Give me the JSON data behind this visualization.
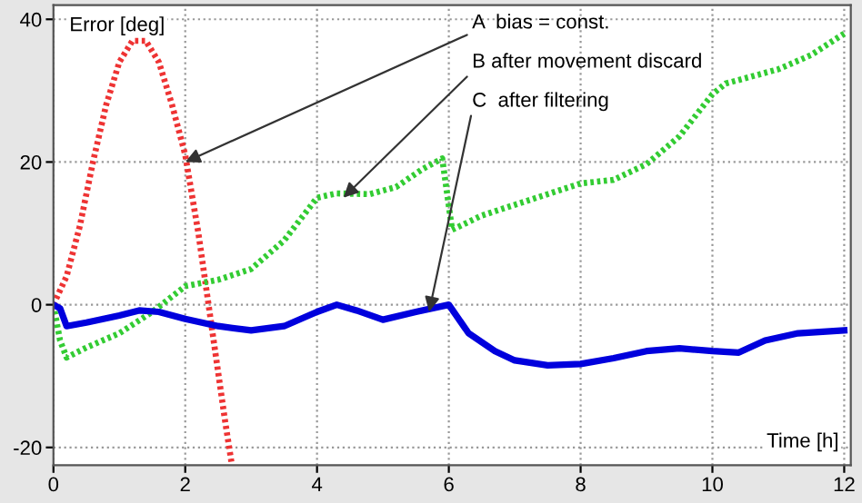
{
  "chart_data": {
    "type": "line",
    "xlabel": "Time [h]",
    "ylabel": "Error [deg]",
    "xlim": [
      0,
      12.1
    ],
    "ylim": [
      -22.5,
      42
    ],
    "xticks": [
      0,
      2,
      4,
      6,
      8,
      10,
      12
    ],
    "yticks": [
      -20,
      0,
      20,
      40
    ],
    "grid": true,
    "legend": false,
    "marker": "none",
    "series": [
      {
        "color": "#ee3333",
        "line_style": "dotted",
        "x": [
          0,
          0.2,
          0.4,
          0.6,
          0.8,
          1.0,
          1.2,
          1.4,
          1.6,
          1.8,
          2.0,
          2.2,
          2.4,
          2.6,
          2.7
        ],
        "values": [
          0,
          4,
          11,
          20,
          28,
          34,
          37,
          37,
          34,
          28,
          21,
          10,
          -3,
          -16,
          -22
        ]
      },
      {
        "color": "#33cc33",
        "line_style": "dotted",
        "x": [
          0,
          0.1,
          0.2,
          0.5,
          1,
          1.5,
          2,
          2.5,
          3,
          3.5,
          4,
          4.3,
          4.8,
          5.2,
          5.6,
          5.9,
          6.05,
          6.5,
          7,
          7.5,
          8,
          8.5,
          9,
          9.5,
          10,
          10.2,
          11,
          11.5,
          12
        ],
        "values": [
          0,
          -5,
          -7.4,
          -6,
          -4,
          -1,
          2.6,
          3.5,
          5,
          9,
          15,
          15.6,
          15.5,
          16.5,
          19,
          20.5,
          10.5,
          12.5,
          14,
          15.5,
          17,
          17.5,
          19.7,
          23.6,
          29.5,
          31,
          33,
          35,
          38
        ]
      },
      {
        "color": "#0000dd",
        "line_style": "solid",
        "x": [
          0,
          0.1,
          0.2,
          0.5,
          1,
          1.3,
          1.6,
          2,
          2.5,
          3,
          3.5,
          4,
          4.3,
          4.6,
          5,
          5.5,
          6,
          6.3,
          6.7,
          7,
          7.5,
          8,
          8.5,
          9,
          9.5,
          10,
          10.4,
          10.8,
          11.3,
          12
        ],
        "values": [
          0,
          -0.5,
          -3,
          -2.5,
          -1.5,
          -0.8,
          -1,
          -2,
          -3,
          -3.6,
          -3,
          -1,
          0,
          -0.8,
          -2.1,
          -1,
          0,
          -4,
          -6.5,
          -7.8,
          -8.5,
          -8.3,
          -7.5,
          -6.5,
          -6.1,
          -6.5,
          -6.7,
          -5,
          -4,
          -3.6
        ]
      }
    ],
    "annotations": [
      {
        "text": "A  bias = const.",
        "x": 2.0,
        "y": 20
      },
      {
        "text": "B after movement discard",
        "x": 4.4,
        "y": 15
      },
      {
        "text": "C  after filtering",
        "x": 5.7,
        "y": -1
      }
    ]
  }
}
